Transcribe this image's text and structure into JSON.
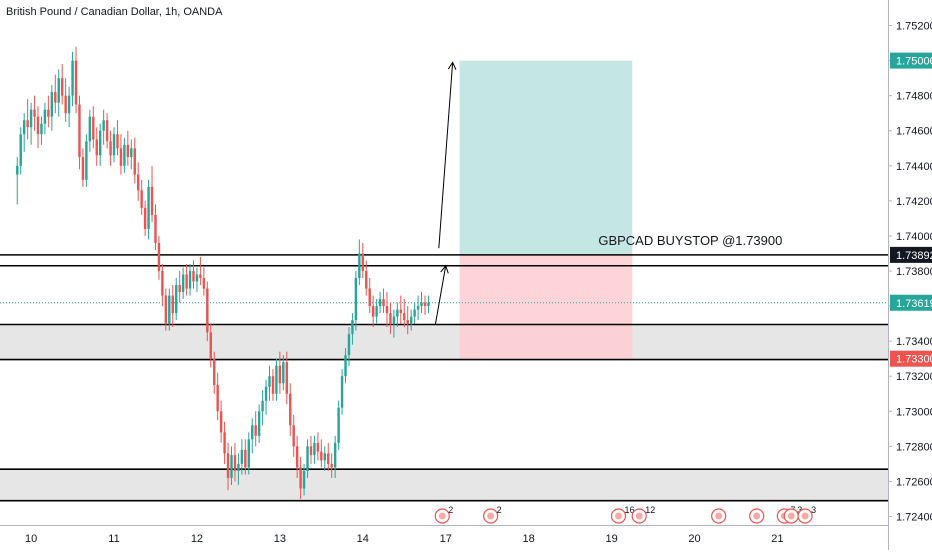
{
  "chart_data": {
    "type": "candlestick",
    "title": "British Pound / Canadian Dollar, 1h, OANDA",
    "ylim": [
      1.7238,
      1.753
    ],
    "y_ticks": [
      1.752,
      1.75,
      1.748,
      1.746,
      1.744,
      1.742,
      1.74,
      1.738,
      1.736,
      1.734,
      1.732,
      1.73,
      1.728,
      1.726,
      1.724
    ],
    "y_tick_labels": [
      "1.75200",
      "1.75000",
      "1.74800",
      "1.74600",
      "1.74400",
      "1.74200",
      "1.74000",
      "1.73800",
      "1.73600",
      "1.73400",
      "1.73200",
      "1.73000",
      "1.72800",
      "1.72600",
      "1.72400"
    ],
    "x_ticks": [
      {
        "label": "10",
        "bar": 4
      },
      {
        "label": "11",
        "bar": 28
      },
      {
        "label": "12",
        "bar": 52
      },
      {
        "label": "13",
        "bar": 76
      },
      {
        "label": "14",
        "bar": 100
      },
      {
        "label": "17",
        "bar": 124
      },
      {
        "label": "18",
        "bar": 148
      },
      {
        "label": "19",
        "bar": 172
      },
      {
        "label": "20",
        "bar": 196
      },
      {
        "label": "21",
        "bar": 220
      }
    ],
    "bar_range": [
      -5,
      252
    ],
    "grid": false,
    "price_markers": [
      {
        "label": "1.75000",
        "value": 1.75,
        "color": "#26a69a"
      },
      {
        "label": "1.73892",
        "value": 1.73892,
        "color": "#131722"
      },
      {
        "label": "1.73619",
        "value": 1.73619,
        "color": "#26a69a"
      },
      {
        "label": "1.73300",
        "value": 1.733,
        "color": "#ef5350"
      }
    ],
    "current_price": 1.73619,
    "horizontal_lines": [
      1.73892,
      1.7383,
      1.73495,
      1.73295,
      1.7267,
      1.7249
    ],
    "zones": [
      {
        "from": 1.73295,
        "to": 1.73495
      },
      {
        "from": 1.7249,
        "to": 1.7267
      }
    ],
    "position": {
      "entry": 1.73892,
      "target": 1.75,
      "stop": 1.733,
      "bar_from": 128,
      "bar_to": 178,
      "profit_color": "#b2dfdb",
      "loss_color": "#ffcdd2"
    },
    "annotation": {
      "text": "GBPCAD BUYSTOP @1.73900",
      "value": 1.7392,
      "bar": 178
    },
    "arrows": [
      {
        "from_bar": 121,
        "from_value": 1.73495,
        "to_bar": 124,
        "to_value": 1.7383
      },
      {
        "from_bar": 122,
        "from_value": 1.7393,
        "to_bar": 126,
        "to_value": 1.7499
      }
    ],
    "events": [
      {
        "bar": 123,
        "count": "2"
      },
      {
        "bar": 137,
        "count": "2"
      },
      {
        "bar": 174,
        "count": "16"
      },
      {
        "bar": 180,
        "count": "12"
      },
      {
        "bar": 203,
        "count": ""
      },
      {
        "bar": 214,
        "count": ""
      },
      {
        "bar": 222,
        "count": "7"
      },
      {
        "bar": 224,
        "count": "3"
      },
      {
        "bar": 228,
        "count": "3"
      }
    ],
    "candles": [
      [
        1.7435,
        1.7445,
        1.7418,
        1.744
      ],
      [
        1.744,
        1.7462,
        1.7435,
        1.7458
      ],
      [
        1.7458,
        1.747,
        1.7448,
        1.7466
      ],
      [
        1.7466,
        1.7478,
        1.7455,
        1.7462
      ],
      [
        1.7462,
        1.7476,
        1.7452,
        1.7472
      ],
      [
        1.7472,
        1.748,
        1.746,
        1.7468
      ],
      [
        1.7468,
        1.7474,
        1.745,
        1.7458
      ],
      [
        1.7458,
        1.7468,
        1.7452,
        1.7464
      ],
      [
        1.7464,
        1.7476,
        1.7458,
        1.7472
      ],
      [
        1.7472,
        1.748,
        1.7462,
        1.7468
      ],
      [
        1.7468,
        1.7486,
        1.746,
        1.7482
      ],
      [
        1.7482,
        1.7492,
        1.747,
        1.7476
      ],
      [
        1.7476,
        1.7495,
        1.7468,
        1.749
      ],
      [
        1.749,
        1.7498,
        1.7475,
        1.748
      ],
      [
        1.748,
        1.749,
        1.7465,
        1.747
      ],
      [
        1.747,
        1.7485,
        1.7462,
        1.748
      ],
      [
        1.748,
        1.7505,
        1.7474,
        1.75
      ],
      [
        1.75,
        1.7508,
        1.747,
        1.7475
      ],
      [
        1.7475,
        1.748,
        1.7438,
        1.7445
      ],
      [
        1.7445,
        1.745,
        1.7428,
        1.7432
      ],
      [
        1.7432,
        1.7458,
        1.7428,
        1.7454
      ],
      [
        1.7454,
        1.7472,
        1.7448,
        1.7468
      ],
      [
        1.7468,
        1.7474,
        1.745,
        1.7455
      ],
      [
        1.7455,
        1.7462,
        1.744,
        1.7446
      ],
      [
        1.7446,
        1.7464,
        1.744,
        1.746
      ],
      [
        1.746,
        1.7472,
        1.7452,
        1.7466
      ],
      [
        1.7466,
        1.747,
        1.745,
        1.7454
      ],
      [
        1.7454,
        1.746,
        1.744,
        1.7446
      ],
      [
        1.7446,
        1.7462,
        1.7442,
        1.7458
      ],
      [
        1.7458,
        1.7466,
        1.7446,
        1.745
      ],
      [
        1.745,
        1.7458,
        1.7435,
        1.744
      ],
      [
        1.744,
        1.7456,
        1.7436,
        1.7452
      ],
      [
        1.7452,
        1.746,
        1.744,
        1.7445
      ],
      [
        1.7445,
        1.7455,
        1.7438,
        1.745
      ],
      [
        1.745,
        1.7456,
        1.743,
        1.7435
      ],
      [
        1.7435,
        1.7442,
        1.742,
        1.7426
      ],
      [
        1.7426,
        1.7432,
        1.7412,
        1.7416
      ],
      [
        1.7416,
        1.742,
        1.74,
        1.7404
      ],
      [
        1.7404,
        1.7432,
        1.7398,
        1.7428
      ],
      [
        1.7428,
        1.744,
        1.7408,
        1.7412
      ],
      [
        1.7412,
        1.7418,
        1.7392,
        1.7396
      ],
      [
        1.7396,
        1.74,
        1.7375,
        1.738
      ],
      [
        1.738,
        1.7384,
        1.736,
        1.7366
      ],
      [
        1.7366,
        1.737,
        1.7346,
        1.735
      ],
      [
        1.735,
        1.737,
        1.7346,
        1.7366
      ],
      [
        1.7366,
        1.7372,
        1.7348,
        1.7356
      ],
      [
        1.7356,
        1.7376,
        1.7352,
        1.7372
      ],
      [
        1.7372,
        1.738,
        1.7362,
        1.7368
      ],
      [
        1.7368,
        1.7382,
        1.7364,
        1.7378
      ],
      [
        1.7378,
        1.7384,
        1.7366,
        1.737
      ],
      [
        1.737,
        1.7384,
        1.7366,
        1.738
      ],
      [
        1.738,
        1.7386,
        1.737,
        1.7374
      ],
      [
        1.7374,
        1.7382,
        1.7368,
        1.7378
      ],
      [
        1.7378,
        1.7388,
        1.7372,
        1.7376
      ],
      [
        1.7376,
        1.7382,
        1.7366,
        1.737
      ],
      [
        1.737,
        1.7374,
        1.734,
        1.7345
      ],
      [
        1.7345,
        1.735,
        1.7325,
        1.733
      ],
      [
        1.733,
        1.7334,
        1.731,
        1.7315
      ],
      [
        1.7315,
        1.7322,
        1.7295,
        1.73
      ],
      [
        1.73,
        1.7306,
        1.7282,
        1.7288
      ],
      [
        1.7288,
        1.7294,
        1.727,
        1.7276
      ],
      [
        1.7276,
        1.7282,
        1.7255,
        1.7262
      ],
      [
        1.7262,
        1.728,
        1.7258,
        1.7275
      ],
      [
        1.7275,
        1.7282,
        1.726,
        1.7266
      ],
      [
        1.7266,
        1.7276,
        1.7258,
        1.727
      ],
      [
        1.727,
        1.7284,
        1.7264,
        1.7278
      ],
      [
        1.7278,
        1.7284,
        1.7264,
        1.7268
      ],
      [
        1.7268,
        1.7288,
        1.7264,
        1.7284
      ],
      [
        1.7284,
        1.7296,
        1.7276,
        1.7292
      ],
      [
        1.7292,
        1.73,
        1.728,
        1.7286
      ],
      [
        1.7286,
        1.7304,
        1.7282,
        1.73
      ],
      [
        1.73,
        1.7312,
        1.7292,
        1.7306
      ],
      [
        1.7306,
        1.7318,
        1.7298,
        1.7314
      ],
      [
        1.7314,
        1.7326,
        1.7306,
        1.732
      ],
      [
        1.732,
        1.7324,
        1.7306,
        1.731
      ],
      [
        1.731,
        1.733,
        1.7306,
        1.7326
      ],
      [
        1.7326,
        1.7334,
        1.731,
        1.7316
      ],
      [
        1.7316,
        1.7332,
        1.7312,
        1.7328
      ],
      [
        1.7328,
        1.7334,
        1.7304,
        1.731
      ],
      [
        1.731,
        1.7316,
        1.7286,
        1.7292
      ],
      [
        1.7292,
        1.7298,
        1.7274,
        1.728
      ],
      [
        1.728,
        1.7286,
        1.7262,
        1.7268
      ],
      [
        1.7268,
        1.7274,
        1.725,
        1.7256
      ],
      [
        1.7256,
        1.727,
        1.7252,
        1.7266
      ],
      [
        1.7266,
        1.7284,
        1.7262,
        1.728
      ],
      [
        1.728,
        1.7286,
        1.727,
        1.7275
      ],
      [
        1.7275,
        1.7286,
        1.727,
        1.7282
      ],
      [
        1.7282,
        1.7288,
        1.7272,
        1.7277
      ],
      [
        1.7277,
        1.7284,
        1.7268,
        1.7272
      ],
      [
        1.7272,
        1.728,
        1.7266,
        1.7276
      ],
      [
        1.7276,
        1.7282,
        1.7266,
        1.727
      ],
      [
        1.727,
        1.7276,
        1.7262,
        1.7268
      ],
      [
        1.7268,
        1.7286,
        1.7262,
        1.7282
      ],
      [
        1.7282,
        1.7306,
        1.7278,
        1.7302
      ],
      [
        1.7302,
        1.7324,
        1.7298,
        1.732
      ],
      [
        1.732,
        1.7336,
        1.7316,
        1.7332
      ],
      [
        1.7332,
        1.7348,
        1.7326,
        1.7344
      ],
      [
        1.7344,
        1.7356,
        1.7338,
        1.7352
      ],
      [
        1.7352,
        1.738,
        1.7346,
        1.7376
      ],
      [
        1.7376,
        1.7398,
        1.7372,
        1.739
      ],
      [
        1.739,
        1.7396,
        1.7376,
        1.738
      ],
      [
        1.738,
        1.7386,
        1.7366,
        1.737
      ],
      [
        1.737,
        1.7376,
        1.7356,
        1.736
      ],
      [
        1.736,
        1.7366,
        1.7348,
        1.7354
      ],
      [
        1.7354,
        1.7364,
        1.735,
        1.736
      ],
      [
        1.736,
        1.7368,
        1.7356,
        1.7364
      ],
      [
        1.7364,
        1.737,
        1.7356,
        1.736
      ],
      [
        1.736,
        1.7368,
        1.7348,
        1.7356
      ],
      [
        1.7356,
        1.7362,
        1.7344,
        1.735
      ],
      [
        1.735,
        1.7358,
        1.7342,
        1.7354
      ],
      [
        1.7354,
        1.7362,
        1.7348,
        1.7358
      ],
      [
        1.7358,
        1.7366,
        1.735,
        1.7356
      ],
      [
        1.7356,
        1.7364,
        1.7348,
        1.7352
      ],
      [
        1.7352,
        1.736,
        1.7344,
        1.735
      ],
      [
        1.735,
        1.7358,
        1.7346,
        1.7354
      ],
      [
        1.7354,
        1.7362,
        1.735,
        1.7358
      ],
      [
        1.7358,
        1.7366,
        1.7352,
        1.736
      ],
      [
        1.736,
        1.7368,
        1.7356,
        1.7362
      ],
      [
        1.7362,
        1.7366,
        1.7355,
        1.736
      ],
      [
        1.736,
        1.7366,
        1.7356,
        1.7362
      ]
    ]
  }
}
